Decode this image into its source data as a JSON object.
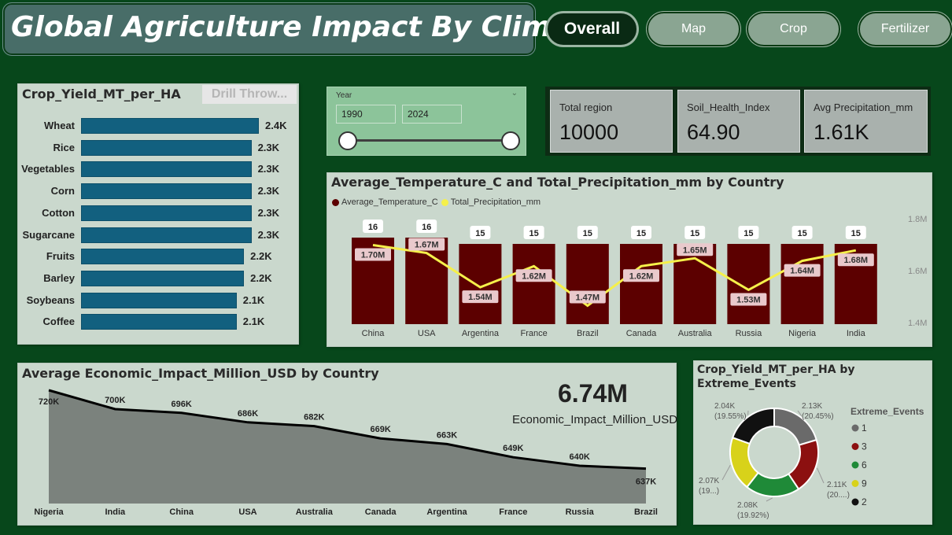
{
  "header": {
    "title": "Global Agriculture Impact By Climate",
    "nav": [
      "Overall",
      "Map",
      "Crop",
      "Fertilizer"
    ]
  },
  "crop_panel": {
    "title": "Crop_Yield_MT_per_HA",
    "drill_label": "Drill Throw..."
  },
  "year_slicer": {
    "label": "Year",
    "start": "1990",
    "end": "2024"
  },
  "kpis": [
    {
      "label": "Total region",
      "value": "10000"
    },
    {
      "label": "Soil_Health_Index",
      "value": "64.90"
    },
    {
      "label": "Avg Precipitation_mm",
      "value": "1.61K"
    }
  ],
  "combo": {
    "title": "Average_Temperature_C and Total_Precipitation_mm by Country",
    "legend": [
      "Average_Temperature_C",
      "Total_Precipitation_mm"
    ],
    "y2_ticks": [
      "1.8M",
      "1.6M",
      "1.4M"
    ]
  },
  "area": {
    "title": "Average Economic_Impact_Million_USD by Country",
    "card_value": "6.74M",
    "card_label": "Economic_Impact_Million_USD"
  },
  "donut": {
    "title": "Crop_Yield_MT_per_HA by Extreme_Events",
    "legend_title": "Extreme_Events"
  },
  "colors": {
    "background": "#07471b",
    "bar": "#12607f",
    "temp_bar": "#5c0000",
    "precip_line": "#f5f04a",
    "area_fill": "#7b827d"
  },
  "chart_data": [
    {
      "type": "bar",
      "title": "Crop_Yield_MT_per_HA",
      "categories": [
        "Wheat",
        "Rice",
        "Vegetables",
        "Corn",
        "Cotton",
        "Sugarcane",
        "Fruits",
        "Barley",
        "Soybeans",
        "Coffee"
      ],
      "values": [
        2400,
        2300,
        2300,
        2300,
        2300,
        2300,
        2200,
        2200,
        2100,
        2100
      ],
      "labels": [
        "2.4K",
        "2.3K",
        "2.3K",
        "2.3K",
        "2.3K",
        "2.3K",
        "2.2K",
        "2.2K",
        "2.1K",
        "2.1K"
      ]
    },
    {
      "type": "bar",
      "title": "Average_Temperature_C and Total_Precipitation_mm by Country",
      "categories": [
        "China",
        "USA",
        "Argentina",
        "France",
        "Brazil",
        "Canada",
        "Australia",
        "Russia",
        "Nigeria",
        "India"
      ],
      "series": [
        {
          "name": "Average_Temperature_C",
          "type": "bar",
          "values": [
            16,
            16,
            15,
            15,
            15,
            15,
            15,
            15,
            15,
            15
          ]
        },
        {
          "name": "Total_Precipitation_mm",
          "type": "line",
          "values": [
            1700000,
            1670000,
            1540000,
            1620000,
            1470000,
            1620000,
            1650000,
            1530000,
            1640000,
            1680000
          ],
          "labels": [
            "1.70M",
            "1.67M",
            "1.54M",
            "1.62M",
            "1.47M",
            "1.62M",
            "1.65M",
            "1.53M",
            "1.64M",
            "1.68M"
          ]
        }
      ],
      "y2lim": [
        1400000,
        1800000
      ]
    },
    {
      "type": "area",
      "title": "Average Economic_Impact_Million_USD by Country",
      "categories": [
        "Nigeria",
        "India",
        "China",
        "USA",
        "Australia",
        "Canada",
        "Argentina",
        "France",
        "Russia",
        "Brazil"
      ],
      "values": [
        720,
        700,
        696,
        686,
        682,
        669,
        663,
        649,
        640,
        637
      ],
      "labels": [
        "720K",
        "700K",
        "696K",
        "686K",
        "682K",
        "669K",
        "663K",
        "649K",
        "640K",
        "637K"
      ]
    },
    {
      "type": "pie",
      "title": "Crop_Yield_MT_per_HA by Extreme_Events",
      "categories": [
        "1",
        "3",
        "6",
        "9",
        "2"
      ],
      "values": [
        2130,
        2110,
        2080,
        2070,
        2040
      ],
      "labels": [
        "2.13K\n(20.45%)",
        "2.11K\n(20....)",
        "2.08K\n(19.92%)",
        "2.07K\n(19...)",
        "2.04K\n(19.55%)"
      ],
      "colors": [
        "#6a6a6a",
        "#8c1010",
        "#1f8a38",
        "#d8d21a",
        "#111111"
      ]
    }
  ]
}
